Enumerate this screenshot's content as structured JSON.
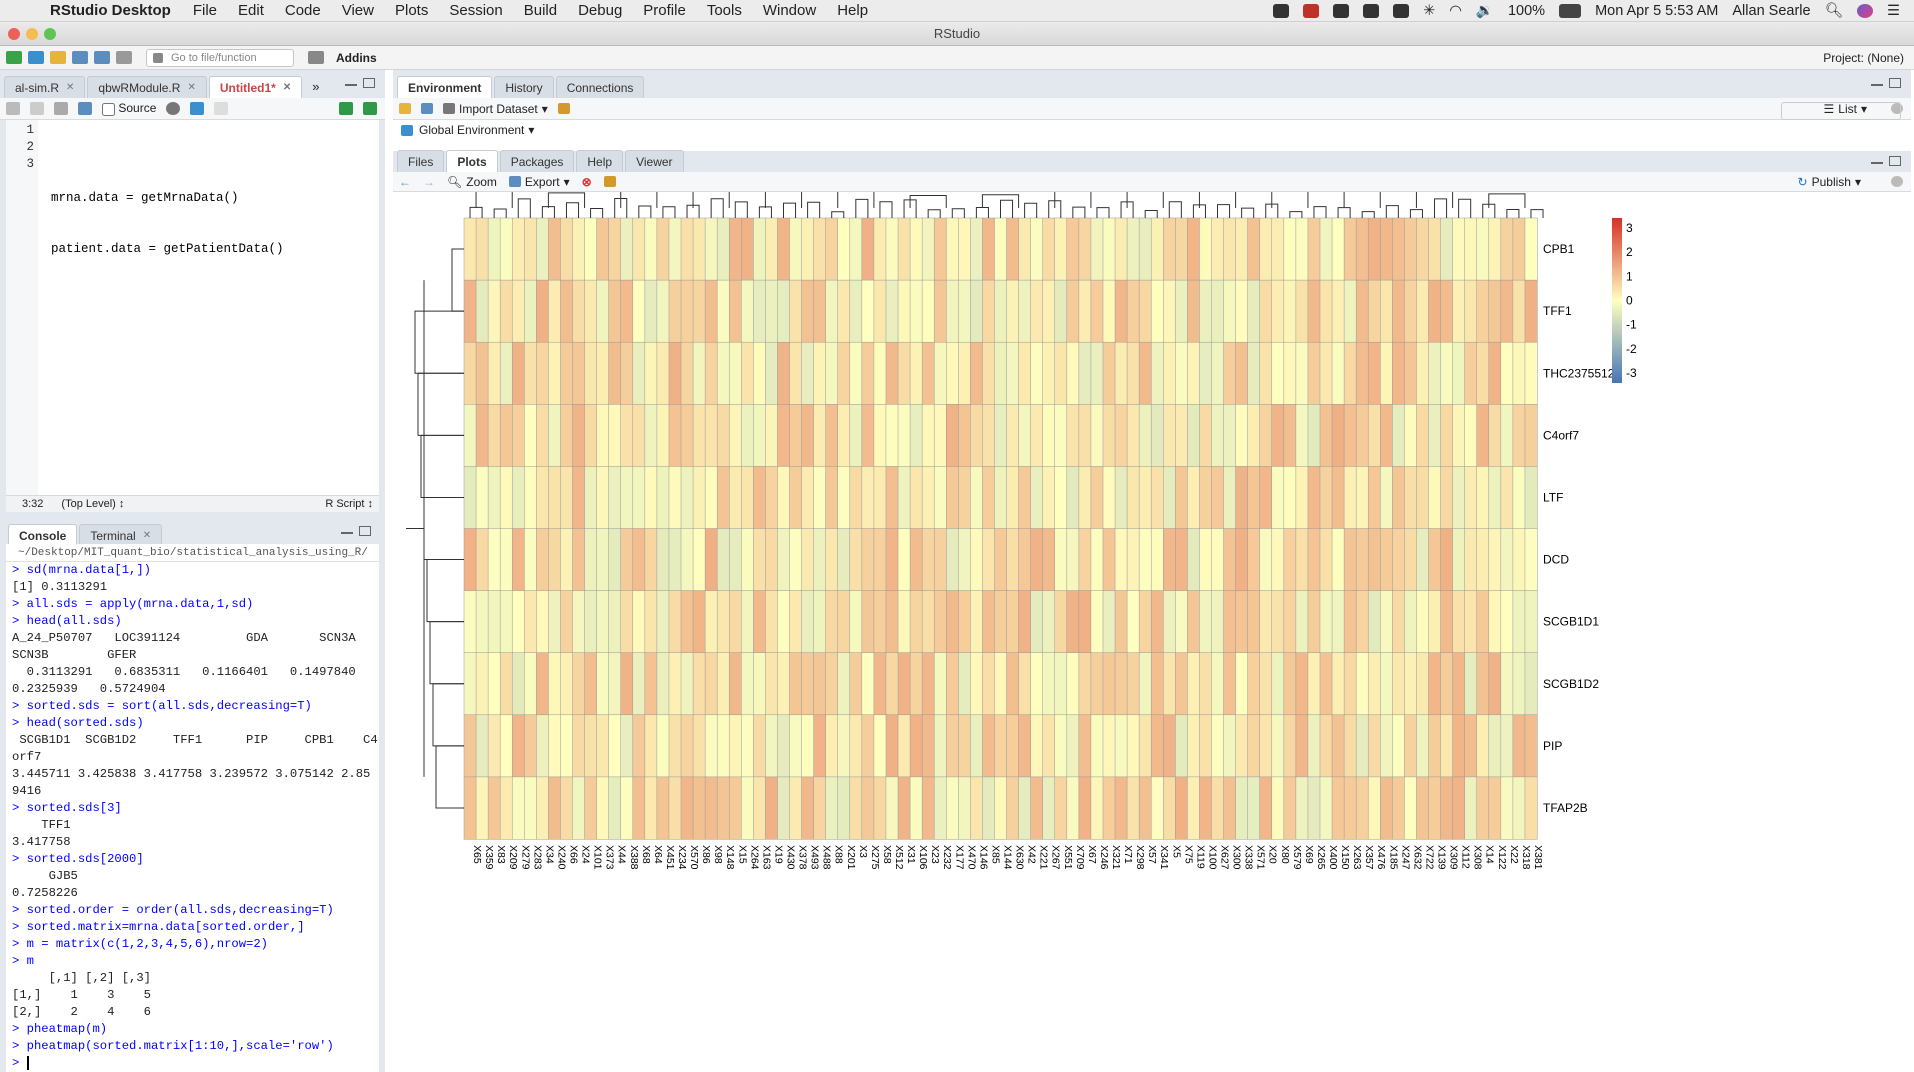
{
  "menubar": {
    "app_name": "RStudio Desktop",
    "menus": [
      "File",
      "Edit",
      "Code",
      "View",
      "Plots",
      "Session",
      "Build",
      "Debug",
      "Profile",
      "Tools",
      "Window",
      "Help"
    ],
    "battery": "100%",
    "datetime": "Mon Apr 5  5:53 AM",
    "user": "Allan Searle"
  },
  "window": {
    "title": "RStudio"
  },
  "toolbar": {
    "goto_placeholder": "Go to file/function",
    "addins": "Addins",
    "project": "Project: (None)"
  },
  "source_tabs": [
    "al-sim.R",
    "qbwRModule.R",
    "Untitled1*"
  ],
  "source_toolbar": {
    "source_checkbox_label": "Source"
  },
  "editor": {
    "lines": [
      {
        "num": "1",
        "text": ""
      },
      {
        "num": "2",
        "text": "mrna.data = getMrnaData()"
      },
      {
        "num": "3",
        "text": "patient.data = getPatientData()"
      }
    ],
    "cursor_pos": "3:32",
    "scope": "(Top Level)",
    "filetype": "R Script"
  },
  "console_tabs": [
    "Console",
    "Terminal"
  ],
  "console_path": "~/Desktop/MIT_quant_bio/statistical_analysis_using_R/",
  "console_lines": [
    {
      "t": "> sd(mrna.data[1,])",
      "cmd": true
    },
    {
      "t": "[1] 0.3113291",
      "cmd": false
    },
    {
      "t": "> all.sds = apply(mrna.data,1,sd)",
      "cmd": true
    },
    {
      "t": "> head(all.sds)",
      "cmd": true
    },
    {
      "t": "A_24_P50707   LOC391124         GDA       SCN3A",
      "cmd": false
    },
    {
      "t": "SCN3B        GFER",
      "cmd": false
    },
    {
      "t": "  0.3113291   0.6835311   0.1166401   0.1497840",
      "cmd": false
    },
    {
      "t": "0.2325939   0.5724904",
      "cmd": false
    },
    {
      "t": "> sorted.sds = sort(all.sds,decreasing=T)",
      "cmd": true
    },
    {
      "t": "> head(sorted.sds)",
      "cmd": true
    },
    {
      "t": " SCGB1D1  SCGB1D2     TFF1      PIP     CPB1    C4",
      "cmd": false
    },
    {
      "t": "orf7",
      "cmd": false
    },
    {
      "t": "3.445711 3.425838 3.417758 3.239572 3.075142 2.85",
      "cmd": false
    },
    {
      "t": "9416",
      "cmd": false
    },
    {
      "t": "> sorted.sds[3]",
      "cmd": true
    },
    {
      "t": "    TFF1",
      "cmd": false
    },
    {
      "t": "3.417758",
      "cmd": false
    },
    {
      "t": "> sorted.sds[2000]",
      "cmd": true
    },
    {
      "t": "     GJB5",
      "cmd": false
    },
    {
      "t": "0.7258226",
      "cmd": false
    },
    {
      "t": "> sorted.order = order(all.sds,decreasing=T)",
      "cmd": true
    },
    {
      "t": "> sorted.matrix=mrna.data[sorted.order,]",
      "cmd": true
    },
    {
      "t": "> m = matrix(c(1,2,3,4,5,6),nrow=2)",
      "cmd": true
    },
    {
      "t": "> m",
      "cmd": true
    },
    {
      "t": "     [,1] [,2] [,3]",
      "cmd": false
    },
    {
      "t": "[1,]    1    3    5",
      "cmd": false
    },
    {
      "t": "[2,]    2    4    6",
      "cmd": false
    },
    {
      "t": "> pheatmap(m)",
      "cmd": true
    },
    {
      "t": "> phеatmap(sorted.matrix[1:10,],scale='row')",
      "cmd": true
    }
  ],
  "console_prompt": ">",
  "env_tabs": [
    "Environment",
    "History",
    "Connections"
  ],
  "env_toolbar": {
    "import_dataset": "Import Dataset",
    "list_mode": "List",
    "scope": "Global Environment"
  },
  "files_tabs": [
    "Files",
    "Plots",
    "Packages",
    "Help",
    "Viewer"
  ],
  "plots_toolbar": {
    "zoom": "Zoom",
    "export": "Export",
    "publish": "Publish"
  },
  "colors": {
    "low": "#4575b4",
    "mid": "#ffffbf",
    "high": "#d73027",
    "accent": "#1a73c7"
  },
  "chart_data": {
    "type": "heatmap",
    "title": "",
    "rows": [
      "CPB1",
      "TFF1",
      "THC2375512",
      "C4orf7",
      "LTF",
      "DCD",
      "SCGB1D1",
      "SCGB1D2",
      "PIP",
      "TFAP2B"
    ],
    "columns": [
      "X65",
      "X359",
      "X83",
      "X209",
      "X279",
      "X283",
      "X34",
      "X240",
      "X66",
      "X24",
      "X101",
      "X373",
      "X44",
      "X388",
      "X68",
      "X64",
      "X451",
      "X234",
      "X570",
      "X86",
      "X98",
      "X148",
      "X15",
      "X264",
      "X163",
      "X19",
      "X430",
      "X378",
      "X493",
      "X488",
      "X88",
      "X201",
      "X3",
      "X275",
      "X58",
      "X512",
      "X31",
      "X106",
      "X23",
      "X232",
      "X177",
      "X470",
      "X146",
      "X85",
      "X144",
      "X630",
      "X42",
      "X221",
      "X267",
      "X551",
      "X709",
      "X67",
      "X246",
      "X321",
      "X71",
      "X298",
      "X57",
      "X341",
      "X5",
      "X75",
      "X119",
      "X100",
      "X627",
      "X300",
      "X338",
      "X571",
      "X20",
      "X80",
      "X579",
      "X69",
      "X265",
      "X400",
      "X150",
      "X263",
      "X357",
      "X476",
      "X185",
      "X247",
      "X632",
      "X722",
      "X139",
      "X309",
      "X112",
      "X308",
      "X14",
      "X122",
      "X22",
      "X318",
      "X381"
    ],
    "color_scale": {
      "min": -3,
      "max": 3,
      "ticks": [
        "3",
        "2",
        "1",
        "0",
        "-1",
        "-2",
        "-3"
      ]
    },
    "cluster_rows": true,
    "cluster_cols": true
  }
}
